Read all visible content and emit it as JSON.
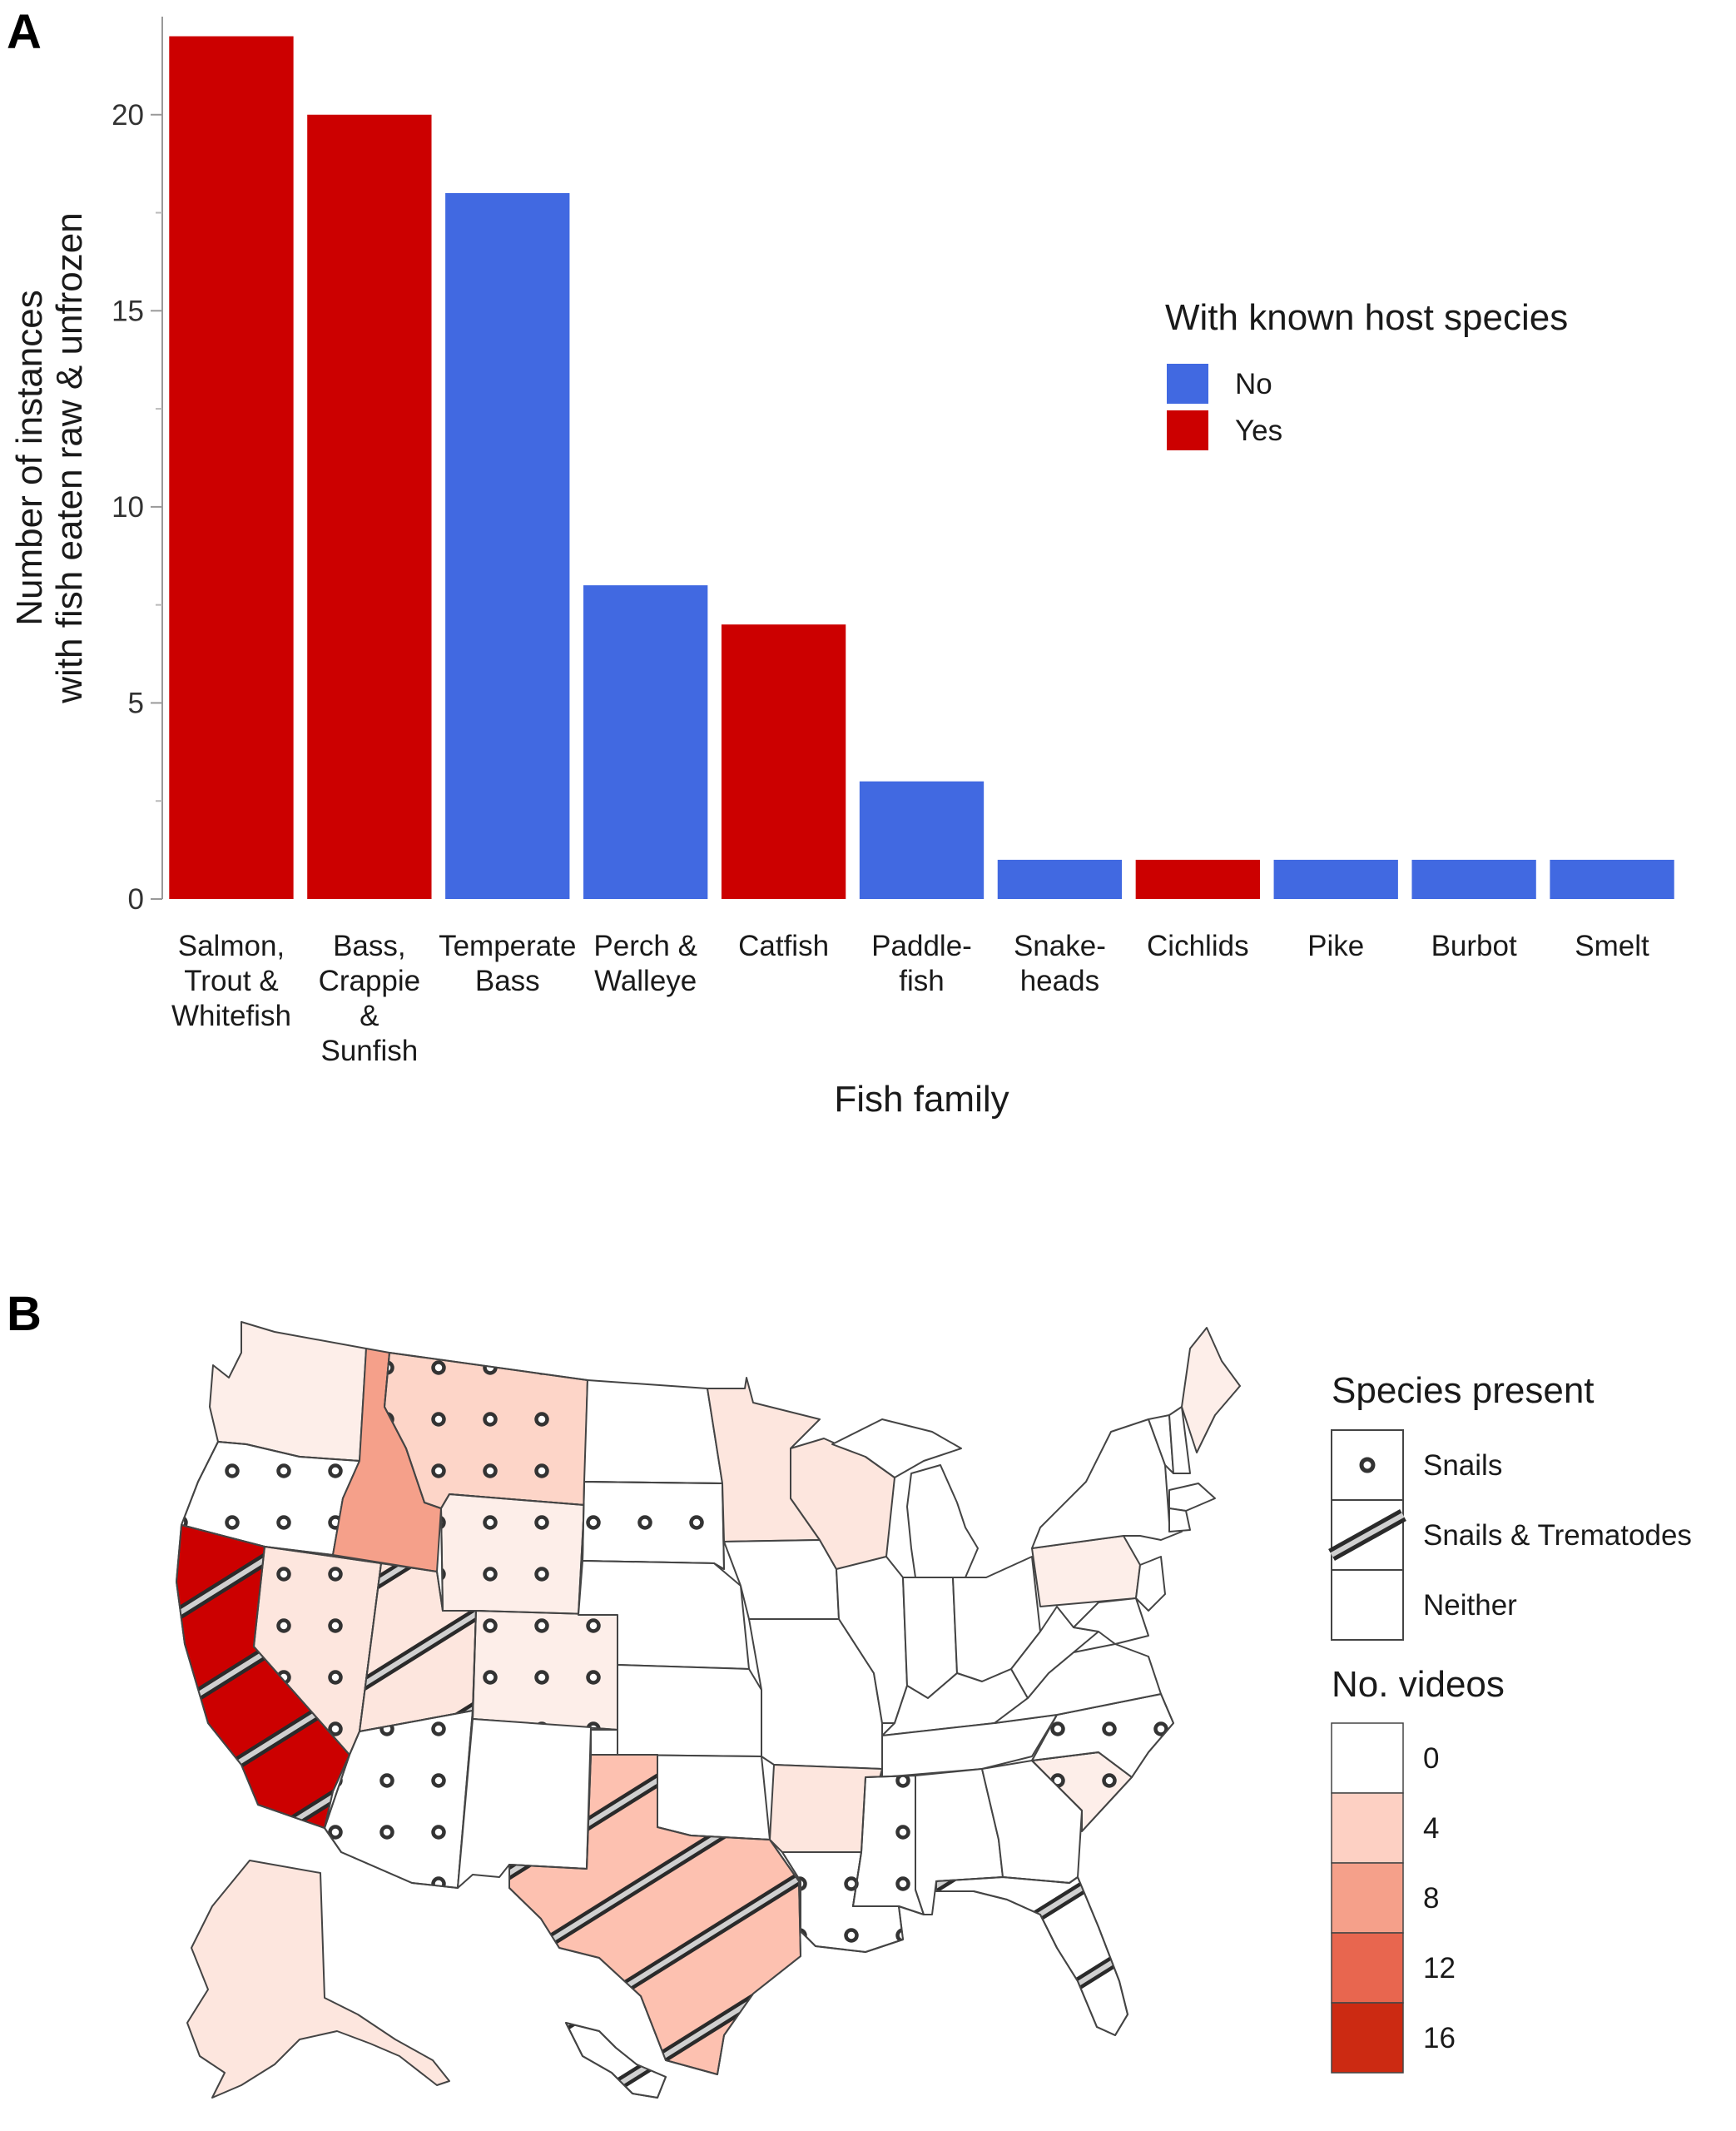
{
  "panelA": {
    "letter": "A",
    "chart_data": {
      "type": "bar",
      "categories": [
        [
          "Salmon,",
          "Trout &",
          "Whitefish"
        ],
        [
          "Bass,",
          "Crappie",
          "&",
          "Sunfish"
        ],
        [
          "Temperate",
          "Bass"
        ],
        [
          "Perch &",
          "Walleye"
        ],
        [
          "Catfish"
        ],
        [
          "Paddle-",
          "fish"
        ],
        [
          "Snake-",
          "heads"
        ],
        [
          "Cichlids"
        ],
        [
          "Pike"
        ],
        [
          "Burbot"
        ],
        [
          "Smelt"
        ]
      ],
      "values": [
        22,
        20,
        18,
        8,
        7,
        3,
        1,
        1,
        1,
        1,
        1
      ],
      "known_host": [
        "Yes",
        "Yes",
        "No",
        "No",
        "Yes",
        "No",
        "No",
        "Yes",
        "No",
        "No",
        "No"
      ],
      "xlabel": "Fish family",
      "ylabel": [
        "Number of instances",
        "with fish eaten raw & unfrozen"
      ],
      "ylim": [
        0,
        22.5
      ],
      "yticks": [
        0,
        5,
        10,
        15,
        20
      ],
      "legend": {
        "title": "With known host species",
        "placement": "right",
        "entries": [
          {
            "label": "No",
            "color": "#4169e1"
          },
          {
            "label": "Yes",
            "color": "#cc0000"
          }
        ]
      }
    }
  },
  "panelB": {
    "letter": "B",
    "legend_species": {
      "title": "Species present",
      "entries": [
        {
          "label": "Snails",
          "pattern": "dots"
        },
        {
          "label": "Snails & Trematodes",
          "pattern": "stripes"
        },
        {
          "label": "Neither",
          "pattern": "none"
        }
      ]
    },
    "legend_videos": {
      "title": "No. videos",
      "entries": [
        {
          "label": "0",
          "color": "#ffffff"
        },
        {
          "label": "4",
          "color": "#fdd0c3"
        },
        {
          "label": "8",
          "color": "#f5a08a"
        },
        {
          "label": "12",
          "color": "#e8664f"
        },
        {
          "label": "16",
          "color": "#cc2a12"
        }
      ]
    }
  }
}
